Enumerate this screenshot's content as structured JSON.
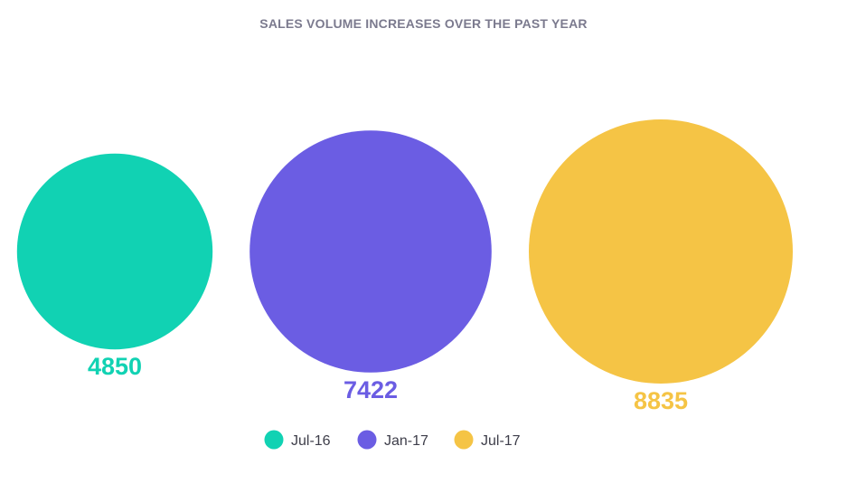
{
  "chart_data": {
    "type": "bubble",
    "title": "SALES VOLUME INCREASES OVER THE PAST YEAR",
    "categories": [
      "Jul-16",
      "Jan-17",
      "Jul-17"
    ],
    "values": [
      4850,
      7422,
      8835
    ],
    "colors": [
      "#11d2b3",
      "#6b5de3",
      "#f5c445"
    ],
    "legend_position": "bottom-center",
    "grid": false
  }
}
